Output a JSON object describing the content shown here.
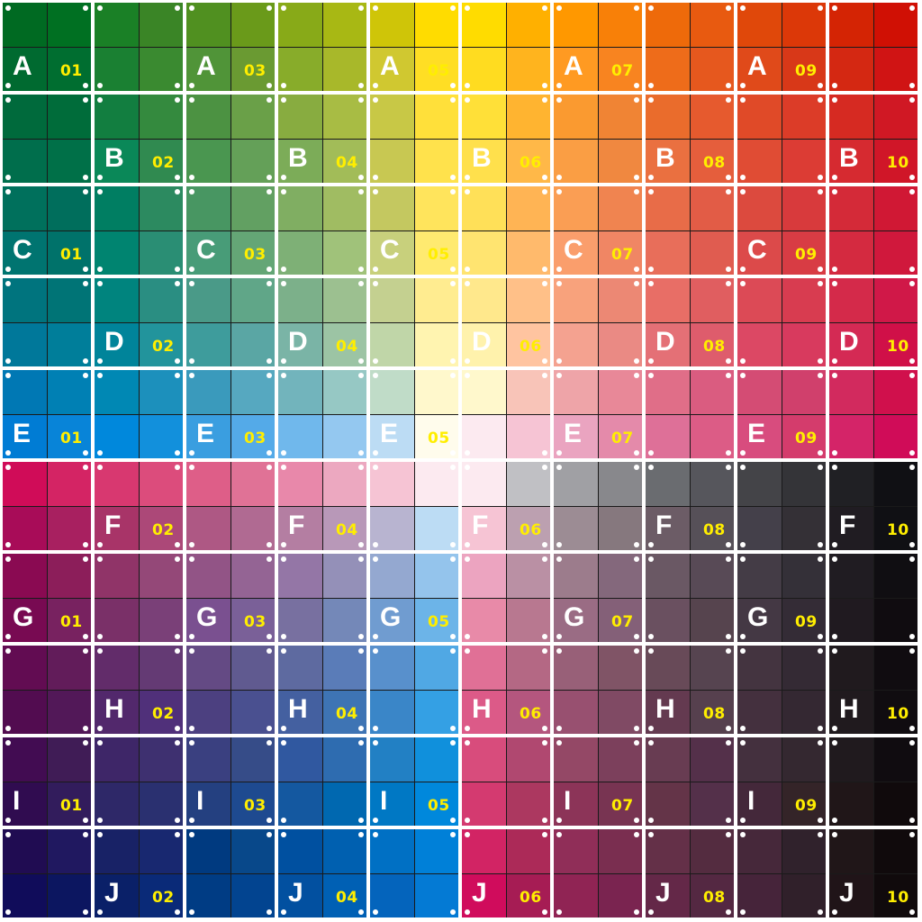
{
  "row_letters": [
    "A",
    "B",
    "C",
    "D",
    "E",
    "F",
    "G",
    "H",
    "I",
    "J"
  ],
  "column_numbers": [
    "01",
    "02",
    "03",
    "04",
    "05",
    "06",
    "07",
    "08",
    "09",
    "10"
  ],
  "label_colors": {
    "letter": "#ffffff",
    "number": "#ffee00"
  },
  "cells": [
    [
      "#006a22",
      "#007022",
      "#1a8026",
      "#3a8526",
      "#509020",
      "#6a9a1a",
      "#88aa18",
      "#a8b814",
      "#cfc508",
      "#ffdc00",
      "#ffdc00",
      "#ffb000",
      "#ff9800",
      "#f88008",
      "#ee6a0a",
      "#e85a10",
      "#e0480a",
      "#dc3808",
      "#d42404",
      "#d01004"
    ],
    [
      "#006a30",
      "#006e30",
      "#1a8032",
      "#3a8a30",
      "#509438",
      "#6a9a32",
      "#88ac2a",
      "#a8b82a",
      "#d0c830",
      "#ffde24",
      "#ffdc20",
      "#ffb41e",
      "#ff9a22",
      "#f88420",
      "#ee6c1a",
      "#e6581e",
      "#e04a1a",
      "#d83818",
      "#d42812",
      "#d01414"
    ],
    [
      "#006a3c",
      "#006c3a",
      "#127e40",
      "#348a3e",
      "#4c9242",
      "#6aa048",
      "#88ac40",
      "#a8bc44",
      "#c8c846",
      "#ffe03a",
      "#ffe038",
      "#ffb430",
      "#fa9a30",
      "#f08434",
      "#ea6c2c",
      "#e65a2e",
      "#e04a28",
      "#dc3c28",
      "#d62a22",
      "#d01824"
    ],
    [
      "#006e4c",
      "#007048",
      "#0a8858",
      "#308a50",
      "#4a9650",
      "#64a058",
      "#7cac58",
      "#a2bc58",
      "#c8c852",
      "#ffe24c",
      "#ffe04c",
      "#ffb848",
      "#fa9e44",
      "#f08840",
      "#ea7040",
      "#e55e3c",
      "#e04c34",
      "#dc3c34",
      "#d62a30",
      "#d01628"
    ],
    [
      "#00705c",
      "#006e5c",
      "#007e62",
      "#2c8a60",
      "#489662",
      "#62a062",
      "#80ae62",
      "#a0bc62",
      "#c4c860",
      "#ffe45c",
      "#ffe058",
      "#ffb454",
      "#fa9e54",
      "#f08450",
      "#e86c48",
      "#e25c46",
      "#dc4a3e",
      "#d83a3c",
      "#d42a38",
      "#d01834"
    ],
    [
      "#007470",
      "#00726a",
      "#008470",
      "#2a8e74",
      "#489c78",
      "#64a676",
      "#7eb076",
      "#a0c27a",
      "#c8d07c",
      "#ffea70",
      "#ffe470",
      "#ffba6c",
      "#fa9e6c",
      "#f08664",
      "#e86e5a",
      "#e05c50",
      "#dc4a4a",
      "#d83c44",
      "#d42a40",
      "#d0183c"
    ],
    [
      "#00747e",
      "#007476",
      "#00847e",
      "#2a8e82",
      "#4a9a88",
      "#60a688",
      "#7cb08a",
      "#9cc090",
      "#c4d090",
      "#ffec90",
      "#ffe88c",
      "#ffc088",
      "#f8a27c",
      "#ec8874",
      "#e86e66",
      "#e05e60",
      "#dc4a56",
      "#d83c50",
      "#d42a4a",
      "#d01848"
    ],
    [
      "#00789a",
      "#007e9a",
      "#00849a",
      "#22949c",
      "#3e9c9c",
      "#5aa6a4",
      "#7ab4a6",
      "#9cc4a4",
      "#c0d6a8",
      "#fff4b0",
      "#fff2ac",
      "#ffc4a0",
      "#f4a290",
      "#ea8a84",
      "#e47076",
      "#de5c6c",
      "#dc4864",
      "#d83a5e",
      "#d42a54",
      "#d01048"
    ],
    [
      "#0078b4",
      "#0080b4",
      "#0088b4",
      "#1c90bc",
      "#3a9abc",
      "#56a8c0",
      "#72b4bc",
      "#96c8c4",
      "#c0dcc8",
      "#fff8cc",
      "#fff8cc",
      "#f8c4b8",
      "#eea4a8",
      "#e88898",
      "#e06e88",
      "#da5c80",
      "#d44c74",
      "#d0406c",
      "#d22a5e",
      "#d0104c"
    ],
    [
      "#007cd4",
      "#0884d8",
      "#0088dc",
      "#1290dc",
      "#3a9ee0",
      "#54aae8",
      "#70b8ec",
      "#94c8f0",
      "#bcdcf4",
      "#fffcec",
      "#fceaf0",
      "#f6c4d4",
      "#eaa4c0",
      "#e48aaa",
      "#de7098",
      "#dc5c86",
      "#d84c7e",
      "#d43c6c",
      "#d42468",
      "#d00c58"
    ],
    [
      "#d00c58",
      "#d42464",
      "#d83870",
      "#dc4c7c",
      "#de5e88",
      "#e07296",
      "#e888aa",
      "#eca8c0",
      "#f6c4d4",
      "#fceaf0",
      "#fceaf0",
      "#c0c0c4",
      "#a0a0a4",
      "#88888c",
      "#6a6c70",
      "#56565c",
      "#444448",
      "#343438",
      "#202024",
      "#101014"
    ],
    [
      "#a80c58",
      "#a82060",
      "#a83468",
      "#ac4878",
      "#ae5884",
      "#b06a92",
      "#b47ea2",
      "#b898b8",
      "#b8b4d0",
      "#bcdcf4",
      "#f6c4d4",
      "#bca0b0",
      "#9c8c94",
      "#86787e",
      "#6c5c66",
      "#565058",
      "#44404a",
      "#343036",
      "#201c22",
      "#101014"
    ],
    [
      "#8a0a52",
      "#8c1e5a",
      "#903468",
      "#944878",
      "#925486",
      "#946494",
      "#9476a6",
      "#9490b8",
      "#94a8d0",
      "#94c4ec",
      "#eca4c0",
      "#ba90a4",
      "#9c7c8c",
      "#84687c",
      "#6a5864",
      "#584a56",
      "#443c46",
      "#343038",
      "#201c22",
      "#100e12"
    ],
    [
      "#780a52",
      "#782260",
      "#7a3068",
      "#7a4078",
      "#7a5090",
      "#7a6098",
      "#7870a0",
      "#7488b8",
      "#709cd0",
      "#6cb4e8",
      "#e88aa8",
      "#b87890",
      "#9a6c84",
      "#846078",
      "#6a5060",
      "#56444e",
      "#443844",
      "#342c36",
      "#201a20",
      "#100c10"
    ],
    [
      "#620c52",
      "#621c5a",
      "#622c6a",
      "#643a74",
      "#644a84",
      "#605a90",
      "#5e6aa0",
      "#5a7cb8",
      "#5890cc",
      "#50a8e4",
      "#e07096",
      "#b46884",
      "#986078",
      "#805466",
      "#684a58",
      "#564450",
      "#443440",
      "#342a34",
      "#201a1e",
      "#100c10"
    ],
    [
      "#520c50",
      "#521858",
      "#52286c",
      "#50307a",
      "#4c4080",
      "#4a5090",
      "#4460a0",
      "#3e74b4",
      "#3a86c8",
      "#34a0e4",
      "#dc5a88",
      "#b4567e",
      "#985070",
      "#804a64",
      "#643a50",
      "#56404e",
      "#44303e",
      "#342832",
      "#201a1e",
      "#100c10"
    ],
    [
      "#420c52",
      "#401c56",
      "#3e2668",
      "#3e3070",
      "#3a4080",
      "#364c88",
      "#3058a0",
      "#2e6cb0",
      "#2280c4",
      "#1090dc",
      "#d84c7c",
      "#b04870",
      "#944866",
      "#7c405c",
      "#683c52",
      "#54304a",
      "#44303e",
      "#342830",
      "#201a1e",
      "#100c10"
    ],
    [
      "#300c50",
      "#321c5c",
      "#2e2868",
      "#2a3070",
      "#244080",
      "#1e4a90",
      "#1458a0",
      "#0068b0",
      "#0078c4",
      "#0088dc",
      "#d43a70",
      "#ac3860",
      "#8c3458",
      "#783452",
      "#643448",
      "#54304a",
      "#44283a",
      "#342428",
      "#201618",
      "#100a0c"
    ],
    [
      "#200c52",
      "#201860",
      "#182266",
      "#182870",
      "#003a80",
      "#08488a",
      "#0050a0",
      "#0060b0",
      "#0070c4",
      "#0080d8",
      "#d22464",
      "#ac2a58",
      "#902e58",
      "#7a2e50",
      "#643048",
      "#542c40",
      "#46283a",
      "#30222c",
      "#201618",
      "#100a0c"
    ],
    [
      "#100c5a",
      "#0c1660",
      "#0a2068",
      "#0a2a78",
      "#003c84",
      "#024490",
      "#0250a0",
      "#0060b4",
      "#0464bc",
      "#047ad4",
      "#d00c5c",
      "#a61c54",
      "#902454",
      "#7a2450",
      "#642848",
      "#542842",
      "#46243a",
      "#30202a",
      "#201418",
      "#100a0c"
    ]
  ],
  "labels": [
    [
      {
        "letter": "A",
        "number": "01"
      },
      null,
      {
        "letter": "A",
        "number": "03"
      },
      null,
      {
        "letter": "A",
        "number": "05"
      },
      null,
      {
        "letter": "A",
        "number": "07"
      },
      null,
      {
        "letter": "A",
        "number": "09"
      },
      null
    ],
    [
      null,
      {
        "letter": "B",
        "number": "02"
      },
      null,
      {
        "letter": "B",
        "number": "04"
      },
      null,
      {
        "letter": "B",
        "number": "06"
      },
      null,
      {
        "letter": "B",
        "number": "08"
      },
      null,
      {
        "letter": "B",
        "number": "10"
      }
    ],
    [
      {
        "letter": "C",
        "number": "01"
      },
      null,
      {
        "letter": "C",
        "number": "03"
      },
      null,
      {
        "letter": "C",
        "number": "05"
      },
      null,
      {
        "letter": "C",
        "number": "07"
      },
      null,
      {
        "letter": "C",
        "number": "09"
      },
      null
    ],
    [
      null,
      {
        "letter": "D",
        "number": "02"
      },
      null,
      {
        "letter": "D",
        "number": "04"
      },
      null,
      {
        "letter": "D",
        "number": "06"
      },
      null,
      {
        "letter": "D",
        "number": "08"
      },
      null,
      {
        "letter": "D",
        "number": "10"
      }
    ],
    [
      {
        "letter": "E",
        "number": "01"
      },
      null,
      {
        "letter": "E",
        "number": "03"
      },
      null,
      {
        "letter": "E",
        "number": "05"
      },
      null,
      {
        "letter": "E",
        "number": "07"
      },
      null,
      {
        "letter": "E",
        "number": "09"
      },
      null
    ],
    [
      null,
      {
        "letter": "F",
        "number": "02"
      },
      null,
      {
        "letter": "F",
        "number": "04"
      },
      null,
      {
        "letter": "F",
        "number": "06"
      },
      null,
      {
        "letter": "F",
        "number": "08"
      },
      null,
      {
        "letter": "F",
        "number": "10"
      }
    ],
    [
      {
        "letter": "G",
        "number": "01"
      },
      null,
      {
        "letter": "G",
        "number": "03"
      },
      null,
      {
        "letter": "G",
        "number": "05"
      },
      null,
      {
        "letter": "G",
        "number": "07"
      },
      null,
      {
        "letter": "G",
        "number": "09"
      },
      null
    ],
    [
      null,
      {
        "letter": "H",
        "number": "02"
      },
      null,
      {
        "letter": "H",
        "number": "04"
      },
      null,
      {
        "letter": "H",
        "number": "06"
      },
      null,
      {
        "letter": "H",
        "number": "08"
      },
      null,
      {
        "letter": "H",
        "number": "10"
      }
    ],
    [
      {
        "letter": "I",
        "number": "01"
      },
      null,
      {
        "letter": "I",
        "number": "03"
      },
      null,
      {
        "letter": "I",
        "number": "05"
      },
      null,
      {
        "letter": "I",
        "number": "07"
      },
      null,
      {
        "letter": "I",
        "number": "09"
      },
      null
    ],
    [
      null,
      {
        "letter": "J",
        "number": "02"
      },
      null,
      {
        "letter": "J",
        "number": "04"
      },
      null,
      {
        "letter": "J",
        "number": "06"
      },
      null,
      {
        "letter": "J",
        "number": "08"
      },
      null,
      {
        "letter": "J",
        "number": "10"
      }
    ]
  ]
}
